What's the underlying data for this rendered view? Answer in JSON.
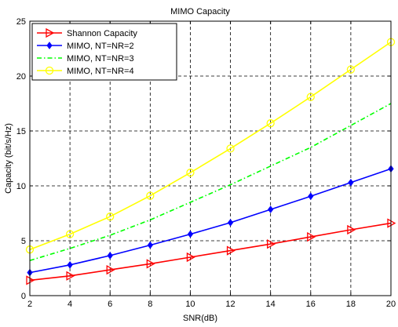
{
  "chart_data": {
    "type": "line",
    "title": "MIMO Capacity",
    "xlabel": "SNR(dB)",
    "ylabel": "Capacity (bit/s/Hz)",
    "xlim": [
      2,
      20
    ],
    "ylim": [
      0,
      25
    ],
    "x_ticks": [
      2,
      4,
      6,
      8,
      10,
      12,
      14,
      16,
      18,
      20
    ],
    "y_ticks": [
      0,
      5,
      10,
      15,
      20,
      25
    ],
    "grid": true,
    "legend_position": "top-left",
    "x": [
      2,
      4,
      6,
      8,
      10,
      12,
      14,
      16,
      18,
      20
    ],
    "series": [
      {
        "name": "Shannon Capacity",
        "color": "#ff0000",
        "line_style": "solid",
        "marker": "triangle-right",
        "values": [
          1.4,
          1.8,
          2.35,
          2.9,
          3.5,
          4.1,
          4.7,
          5.35,
          6.0,
          6.6
        ]
      },
      {
        "name": "MIMO, NT=NR=2",
        "color": "#0000ff",
        "line_style": "solid",
        "marker": "diamond",
        "values": [
          2.1,
          2.8,
          3.65,
          4.6,
          5.6,
          6.65,
          7.85,
          9.05,
          10.3,
          11.55
        ]
      },
      {
        "name": "MIMO, NT=NR=3",
        "color": "#00ff00",
        "line_style": "dash-dot",
        "marker": "none",
        "values": [
          3.2,
          4.3,
          5.5,
          6.9,
          8.5,
          10.1,
          11.8,
          13.5,
          15.5,
          17.5
        ]
      },
      {
        "name": "MIMO, NT=NR=4",
        "color": "#ffff00",
        "line_style": "solid",
        "marker": "circle",
        "values": [
          4.2,
          5.6,
          7.2,
          9.1,
          11.2,
          13.4,
          15.7,
          18.1,
          20.6,
          23.1
        ]
      }
    ]
  }
}
